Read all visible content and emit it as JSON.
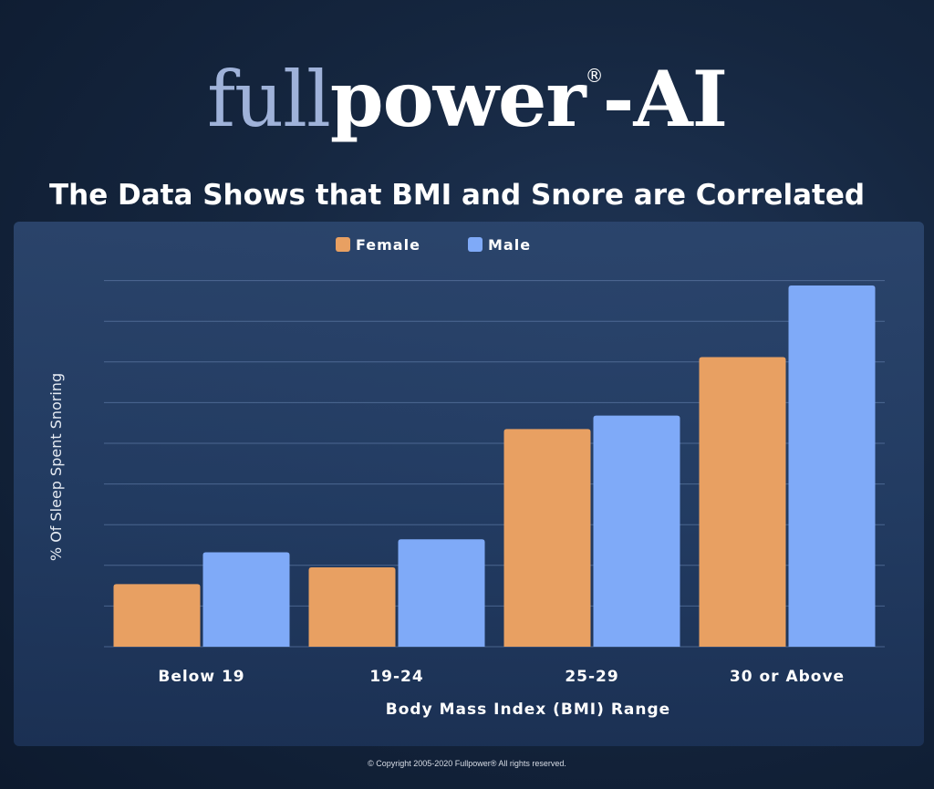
{
  "logo": {
    "light": "full",
    "dark": "power",
    "reg": "®",
    "ai": "-AI"
  },
  "headline": "The Data Shows that BMI and Snore are Correlated",
  "copyright": "© Copyright 2005-2020 Fullpower® All rights reserved.",
  "colors": {
    "female": "#E8A062",
    "male": "#7FAAF8",
    "grid": "#6d8bb8"
  },
  "chart_data": {
    "type": "bar",
    "title": "",
    "xlabel": "Body Mass Index (BMI) Range",
    "ylabel": "% Of Sleep Spent Snoring",
    "categories": [
      "Below 19",
      "19-24",
      "25-29",
      "30 or Above"
    ],
    "series": [
      {
        "name": "Female",
        "values": [
          15.4,
          19.5,
          53.5,
          71.2
        ]
      },
      {
        "name": "Male",
        "values": [
          23.2,
          26.4,
          56.8,
          88.8
        ]
      }
    ],
    "ylim": [
      0,
      100
    ],
    "grid": true,
    "legend": "top-center"
  }
}
